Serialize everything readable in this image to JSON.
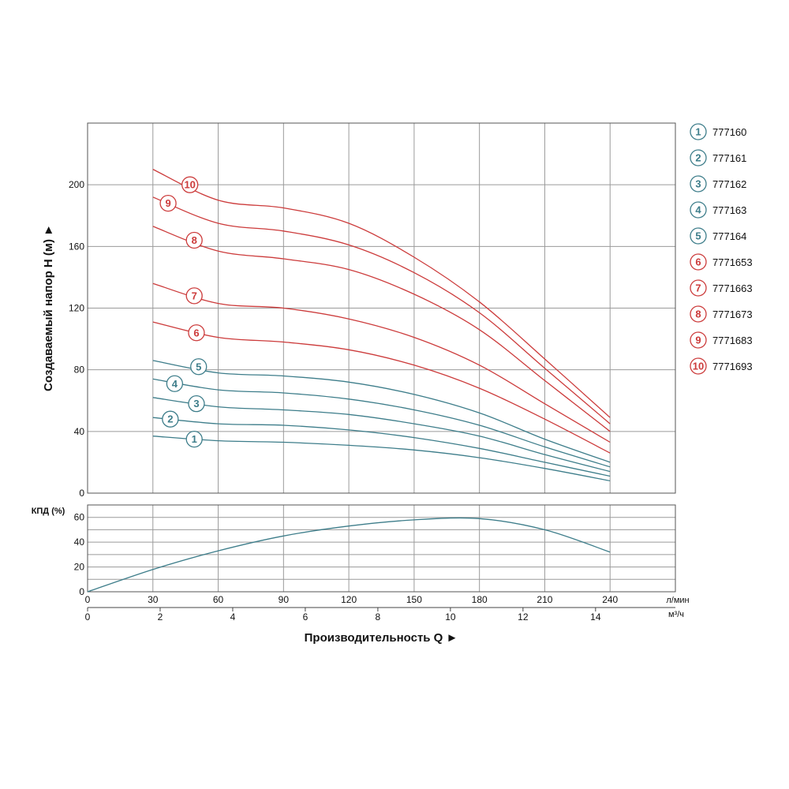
{
  "chart_data": {
    "type": "line",
    "x_lpm": {
      "ticks": [
        0,
        30,
        60,
        90,
        120,
        150,
        180,
        210,
        240
      ],
      "tick_labels": [
        "0",
        "30",
        "60",
        "90",
        "120",
        "150",
        "180",
        "210",
        "240"
      ],
      "unit": "л/мин",
      "range": [
        0,
        270
      ]
    },
    "x_m3h": {
      "ticks": [
        0,
        2,
        4,
        6,
        8,
        10,
        12,
        14
      ],
      "tick_labels": [
        "0",
        "2",
        "4",
        "6",
        "8",
        "10",
        "12",
        "14"
      ],
      "unit": "м³/ч"
    },
    "xlabel": "Производительность Q ►",
    "head": {
      "ylabel": "Создаваемый напор H (м) ►",
      "ylim": [
        0,
        240
      ],
      "yticks": [
        0,
        40,
        80,
        120,
        160,
        200
      ],
      "ytick_labels": [
        "0",
        "40",
        "80",
        "120",
        "160",
        "200"
      ],
      "grid": true,
      "series": [
        {
          "name": "777160",
          "label": "1",
          "color": "#3d7d8a",
          "label_at": [
            49,
            35
          ],
          "x": [
            30,
            60,
            90,
            120,
            150,
            180,
            210,
            240
          ],
          "y": [
            37,
            34,
            33,
            31,
            28,
            23,
            16,
            8
          ]
        },
        {
          "name": "777161",
          "label": "2",
          "color": "#3d7d8a",
          "label_at": [
            38,
            48
          ],
          "x": [
            30,
            60,
            90,
            120,
            150,
            180,
            210,
            240
          ],
          "y": [
            49,
            45,
            44,
            41,
            36,
            29,
            20,
            11
          ]
        },
        {
          "name": "777162",
          "label": "3",
          "color": "#3d7d8a",
          "label_at": [
            50,
            58
          ],
          "x": [
            30,
            60,
            90,
            120,
            150,
            180,
            210,
            240
          ],
          "y": [
            62,
            56,
            54,
            51,
            45,
            37,
            25,
            14
          ]
        },
        {
          "name": "777163",
          "label": "4",
          "color": "#3d7d8a",
          "label_at": [
            40,
            71
          ],
          "x": [
            30,
            60,
            90,
            120,
            150,
            180,
            210,
            240
          ],
          "y": [
            74,
            67,
            65,
            61,
            54,
            44,
            30,
            17
          ]
        },
        {
          "name": "777164",
          "label": "5",
          "color": "#3d7d8a",
          "label_at": [
            51,
            82
          ],
          "x": [
            30,
            60,
            90,
            120,
            150,
            180,
            210,
            240
          ],
          "y": [
            86,
            78,
            76,
            72,
            64,
            52,
            35,
            20
          ]
        },
        {
          "name": "7771653",
          "label": "6",
          "color": "#cc3b3b",
          "label_at": [
            50,
            104
          ],
          "x": [
            30,
            60,
            90,
            120,
            150,
            180,
            210,
            240
          ],
          "y": [
            111,
            101,
            98,
            93,
            83,
            68,
            48,
            26
          ]
        },
        {
          "name": "7771663",
          "label": "7",
          "color": "#cc3b3b",
          "label_at": [
            49,
            128
          ],
          "x": [
            30,
            60,
            90,
            120,
            150,
            180,
            210,
            240
          ],
          "y": [
            136,
            123,
            120,
            113,
            101,
            83,
            58,
            33
          ]
        },
        {
          "name": "7771673",
          "label": "8",
          "color": "#cc3b3b",
          "label_at": [
            49,
            164
          ],
          "x": [
            30,
            60,
            90,
            120,
            150,
            180,
            210,
            240
          ],
          "y": [
            173,
            157,
            152,
            145,
            129,
            106,
            73,
            40
          ]
        },
        {
          "name": "7771683",
          "label": "9",
          "color": "#cc3b3b",
          "label_at": [
            37,
            188
          ],
          "x": [
            30,
            60,
            90,
            120,
            150,
            180,
            210,
            240
          ],
          "y": [
            192,
            175,
            170,
            161,
            143,
            117,
            81,
            45
          ]
        },
        {
          "name": "7771693",
          "label": "10",
          "color": "#cc3b3b",
          "label_at": [
            47,
            200
          ],
          "x": [
            30,
            60,
            90,
            120,
            150,
            180,
            210,
            240
          ],
          "y": [
            210,
            190,
            185,
            175,
            153,
            124,
            87,
            49
          ]
        }
      ]
    },
    "efficiency": {
      "ylabel": "КПД (%)",
      "ylim": [
        0,
        70
      ],
      "yticks": [
        0,
        20,
        40,
        60
      ],
      "ytick_labels": [
        "0",
        "20",
        "40",
        "60"
      ],
      "gridlines": [
        0,
        10,
        20,
        30,
        40,
        50,
        60,
        70
      ],
      "series": [
        {
          "name": "КПД",
          "color": "#3d7d8a",
          "x": [
            0,
            30,
            60,
            90,
            120,
            150,
            180,
            210,
            240
          ],
          "y": [
            0,
            18,
            33,
            45,
            53,
            58,
            59,
            50,
            32
          ]
        }
      ]
    },
    "legend": {
      "position": "right",
      "items": [
        {
          "num": "1",
          "name": "777160",
          "color": "#3d7d8a"
        },
        {
          "num": "2",
          "name": "777161",
          "color": "#3d7d8a"
        },
        {
          "num": "3",
          "name": "777162",
          "color": "#3d7d8a"
        },
        {
          "num": "4",
          "name": "777163",
          "color": "#3d7d8a"
        },
        {
          "num": "5",
          "name": "777164",
          "color": "#3d7d8a"
        },
        {
          "num": "6",
          "name": "7771653",
          "color": "#cc3b3b"
        },
        {
          "num": "7",
          "name": "7771663",
          "color": "#cc3b3b"
        },
        {
          "num": "8",
          "name": "7771673",
          "color": "#cc3b3b"
        },
        {
          "num": "9",
          "name": "7771683",
          "color": "#cc3b3b"
        },
        {
          "num": "10",
          "name": "7771693",
          "color": "#cc3b3b"
        }
      ]
    }
  }
}
